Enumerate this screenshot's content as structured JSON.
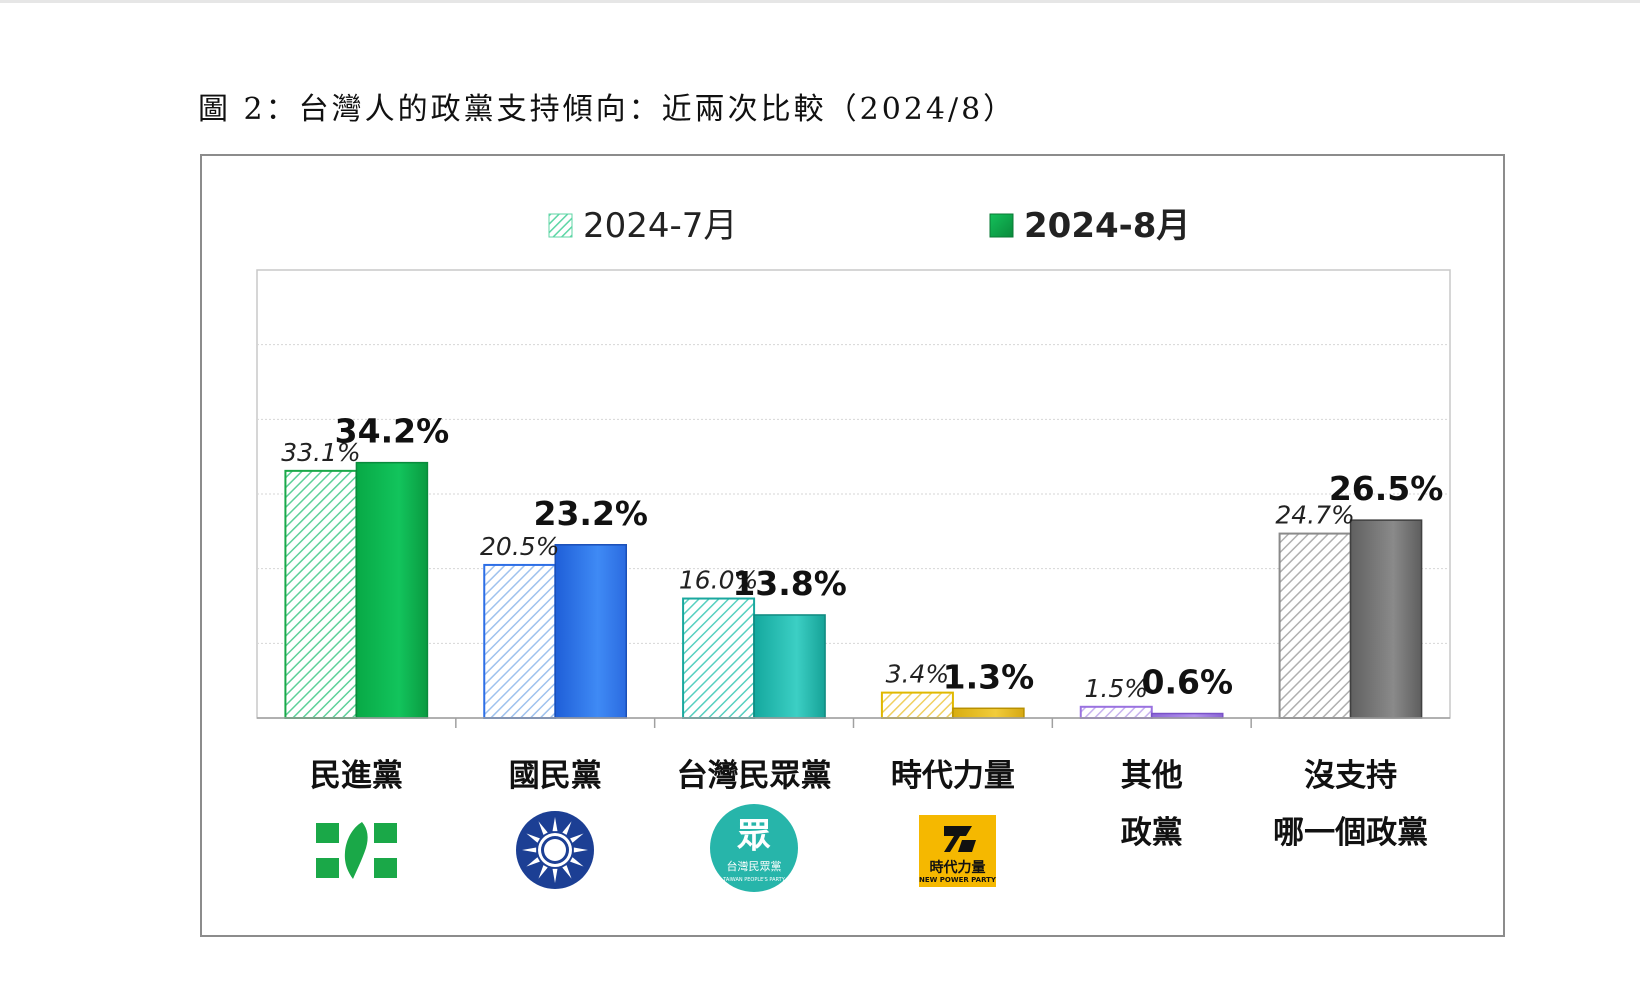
{
  "figure_title": "圖 2：台灣人的政黨支持傾向：近兩次比較（2024/8）",
  "chart_data": {
    "type": "bar",
    "title": "",
    "xlabel": "",
    "ylabel": "",
    "ylim": [
      0,
      60
    ],
    "grid": true,
    "legend_placement": "top",
    "categories": [
      [
        "民進黨"
      ],
      [
        "國民黨"
      ],
      [
        "台灣民眾黨"
      ],
      [
        "時代力量"
      ],
      [
        "其他",
        "政黨"
      ],
      [
        "沒支持",
        "哪一個政黨"
      ]
    ],
    "series": [
      {
        "name": "2024-7月",
        "values": [
          33.1,
          20.5,
          16.0,
          3.4,
          1.5,
          24.7
        ],
        "labels": [
          "33.1%",
          "20.5%",
          "16.0%",
          "3.4%",
          "1.5%",
          "24.7%"
        ],
        "style": "hatched"
      },
      {
        "name": "2024-8月",
        "values": [
          34.2,
          23.2,
          13.8,
          1.3,
          0.6,
          26.5
        ],
        "labels": [
          "34.2%",
          "23.2%",
          "13.8%",
          "1.3%",
          "0.6%",
          "26.5%"
        ],
        "style": "solid"
      }
    ],
    "category_colors": [
      "#0bbf5a",
      "#2d6fe6",
      "#1fb5ad",
      "#e8c020",
      "#a07ee0",
      "#7a7a7a"
    ],
    "legend_colors": [
      "#5fd6a6",
      "#12a84a"
    ]
  },
  "logos": [
    {
      "category": "民進黨",
      "icon": "dpp-logo-icon",
      "color": "#1aa848"
    },
    {
      "category": "國民黨",
      "icon": "kmt-logo-icon",
      "color": "#1c3f94",
      "text": ""
    },
    {
      "category": "台灣民眾黨",
      "icon": "tpp-logo-icon",
      "color": "#27b5aa",
      "text": "眾",
      "subtext": "台灣民眾黨",
      "tinytext": "TAIWAN PEOPLE'S PARTY"
    },
    {
      "category": "時代力量",
      "icon": "npp-logo-icon",
      "color": "#f5b800",
      "text": "時代力量",
      "subtext": "NEW POWER PARTY"
    }
  ]
}
